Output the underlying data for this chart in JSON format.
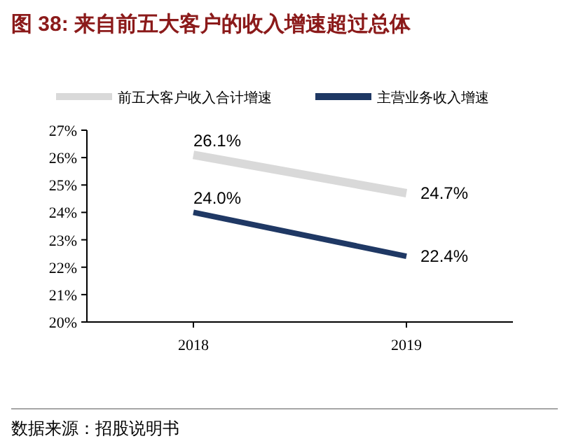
{
  "chart_data": {
    "type": "line",
    "title": "图 38:  来自前五大客户的收入增速超过总体",
    "categories": [
      "2018",
      "2019"
    ],
    "series": [
      {
        "name": "前五大客户收入合计增速",
        "color": "#d9d9d9",
        "values": [
          26.1,
          24.7
        ]
      },
      {
        "name": "主营业务收入增速",
        "color": "#1f3864",
        "values": [
          24.0,
          22.4
        ]
      }
    ],
    "ylim": [
      20,
      27
    ],
    "yticks": [
      {
        "value": 20,
        "label": "20%"
      },
      {
        "value": 21,
        "label": "21%"
      },
      {
        "value": 22,
        "label": "22%"
      },
      {
        "value": 23,
        "label": "23%"
      },
      {
        "value": 24,
        "label": "24%"
      },
      {
        "value": 25,
        "label": "25%"
      },
      {
        "value": 26,
        "label": "26%"
      },
      {
        "value": 27,
        "label": "27%"
      }
    ],
    "value_labels": [
      [
        "26.1%",
        "24.7%"
      ],
      [
        "24.0%",
        "22.4%"
      ]
    ],
    "legend": "top",
    "grid": false,
    "marker": "none",
    "line_style": "solid",
    "annotations": [
      "数据来源：招股说明书"
    ]
  }
}
